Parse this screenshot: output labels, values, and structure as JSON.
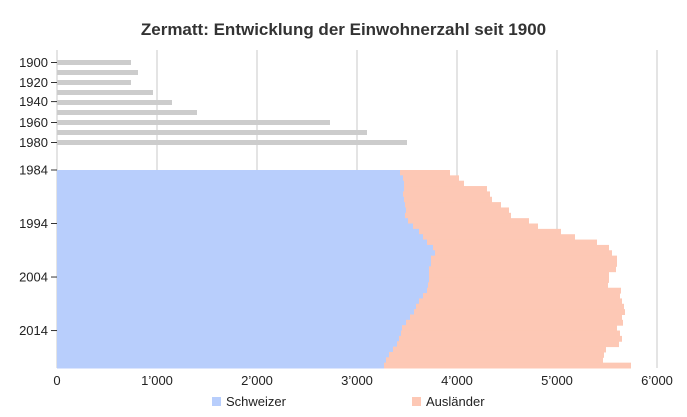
{
  "chart_data": {
    "type": "bar",
    "orientation": "horizontal",
    "stacked": true,
    "title": "Zermatt: Entwicklung der Einwohnerzahl seit 1900",
    "xlim": [
      0,
      6000
    ],
    "x_ticks": [
      0,
      1000,
      2000,
      3000,
      4000,
      5000,
      6000
    ],
    "x_tick_labels": [
      "0",
      "1’000",
      "2’000",
      "3’000",
      "4’000",
      "5’000",
      "6’000"
    ],
    "grid": true,
    "legend_position": "bottom",
    "colors": {
      "total": "#cccccc",
      "schweizer": "#b8cefc",
      "auslaender": "#fdc8b5",
      "grid": "#c8c8c8"
    },
    "census": {
      "years": [
        1900,
        1910,
        1920,
        1930,
        1941,
        1950,
        1960,
        1970,
        1980
      ],
      "tick_labels": [
        "1900",
        "1920",
        "1940",
        "1960",
        "1980"
      ],
      "values": [
        740,
        810,
        740,
        960,
        1150,
        1400,
        2730,
        3100,
        3500
      ]
    },
    "annual": {
      "years": [
        1984,
        1985,
        1986,
        1987,
        1988,
        1989,
        1990,
        1991,
        1992,
        1993,
        1994,
        1995,
        1996,
        1997,
        1998,
        1999,
        2000,
        2001,
        2002,
        2003,
        2004,
        2005,
        2006,
        2007,
        2008,
        2009,
        2010,
        2011,
        2012,
        2013,
        2014,
        2015,
        2016,
        2017,
        2018,
        2019,
        2020
      ],
      "tick_labels": [
        "1984",
        "1994",
        "2004",
        "2014"
      ],
      "series": [
        {
          "name": "Schweizer",
          "values": [
            3430,
            3460,
            3470,
            3470,
            3460,
            3470,
            3480,
            3490,
            3480,
            3510,
            3560,
            3620,
            3660,
            3700,
            3760,
            3780,
            3740,
            3740,
            3720,
            3720,
            3720,
            3710,
            3700,
            3660,
            3620,
            3590,
            3570,
            3530,
            3490,
            3450,
            3440,
            3420,
            3400,
            3360,
            3320,
            3290,
            3270
          ]
        },
        {
          "name": "Ausländer",
          "values": [
            500,
            560,
            600,
            830,
            870,
            880,
            960,
            1030,
            1060,
            1210,
            1250,
            1420,
            1520,
            1700,
            1760,
            1770,
            1860,
            1860,
            1870,
            1800,
            1800,
            1800,
            1940,
            1970,
            2030,
            2080,
            2110,
            2120,
            2170,
            2150,
            2190,
            2230,
            2220,
            2130,
            2150,
            2170,
            2470
          ]
        }
      ]
    }
  }
}
